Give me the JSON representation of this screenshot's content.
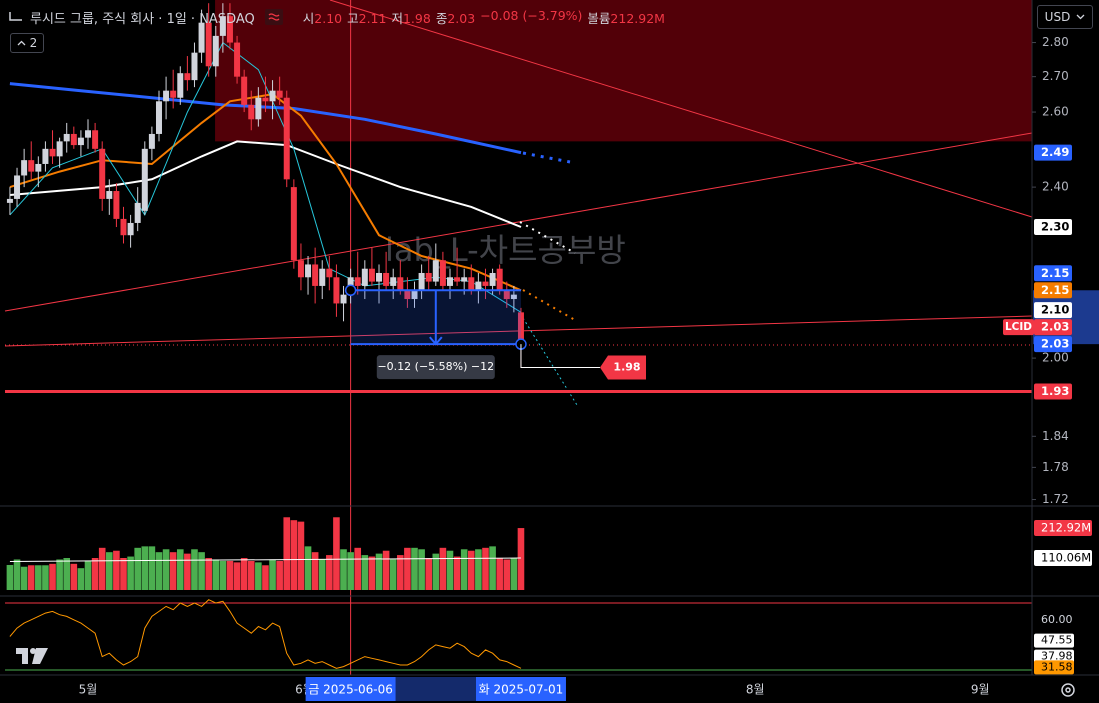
{
  "header": {
    "symbol": "루시드 그룹, 주식 회사 · 1일 · NASDAQ",
    "legend": [
      {
        "label": "시",
        "value": "2.10"
      },
      {
        "label": "고",
        "value": "2.11"
      },
      {
        "label": "저",
        "value": "1.98"
      },
      {
        "label": "종",
        "value": "2.03"
      },
      {
        "value": "−0.08 (−3.79%)"
      },
      {
        "label": "볼륨",
        "value": "212.92M"
      }
    ],
    "indicator_count": "2",
    "currency": "USD"
  },
  "chart_data": {
    "type": "candlestick",
    "scale": "log",
    "xlim": [
      -1.4,
      144
    ],
    "ylim": [
      1.71,
      2.93
    ],
    "xticks": [
      {
        "value": 11,
        "label": "5월"
      },
      {
        "value": 41.5,
        "label": "6월"
      },
      {
        "value": 105,
        "label": "8월"
      },
      {
        "value": 136.7,
        "label": "9월"
      }
    ],
    "yticks": [
      {
        "value": 2.8,
        "label": "2.80"
      },
      {
        "value": 2.7,
        "label": "2.70"
      },
      {
        "value": 2.6,
        "label": "2.60"
      },
      {
        "value": 2.4,
        "label": "2.40"
      },
      {
        "value": 2,
        "label": "2.00"
      },
      {
        "value": 1.84,
        "label": "1.84"
      },
      {
        "value": 1.78,
        "label": "1.78"
      },
      {
        "value": 1.72,
        "label": "1.72"
      }
    ],
    "up_color": "#d1d4dc",
    "down_color": "#f23645",
    "open": [
      2.36,
      2.37,
      2.43,
      2.47,
      2.44,
      2.46,
      2.5,
      2.48,
      2.52,
      2.54,
      2.51,
      2.53,
      2.55,
      2.5,
      2.37,
      2.39,
      2.32,
      2.28,
      2.31,
      2.34,
      2.5,
      2.54,
      2.63,
      2.66,
      2.64,
      2.71,
      2.69,
      2.77,
      2.86,
      2.73,
      2.82,
      2.88,
      2.8,
      2.7,
      2.62,
      2.58,
      2.64,
      2.63,
      2.66,
      2.64,
      2.4,
      2.22,
      2.18,
      2.21,
      2.16,
      2.2,
      2.18,
      2.12,
      2.14,
      2.18,
      2.16,
      2.2,
      2.17,
      2.19,
      2.16,
      2.18,
      2.15,
      2.13,
      2.15,
      2.19,
      2.17,
      2.22,
      2.16,
      2.18,
      2.17,
      2.18,
      2.15,
      2.17,
      2.16,
      2.2,
      2.15,
      2.13,
      2.1
    ],
    "high": [
      2.4,
      2.45,
      2.5,
      2.52,
      2.48,
      2.52,
      2.55,
      2.53,
      2.57,
      2.56,
      2.55,
      2.58,
      2.57,
      2.52,
      2.42,
      2.41,
      2.35,
      2.33,
      2.4,
      2.52,
      2.56,
      2.66,
      2.7,
      2.72,
      2.73,
      2.76,
      2.8,
      2.9,
      2.92,
      2.85,
      2.92,
      2.92,
      2.82,
      2.72,
      2.66,
      2.67,
      2.7,
      2.69,
      2.7,
      2.66,
      2.42,
      2.26,
      2.23,
      2.25,
      2.22,
      2.23,
      2.21,
      2.16,
      2.2,
      2.24,
      2.22,
      2.25,
      2.21,
      2.24,
      2.2,
      2.22,
      2.18,
      2.17,
      2.21,
      2.23,
      2.26,
      2.24,
      2.2,
      2.25,
      2.2,
      2.21,
      2.19,
      2.2,
      2.2,
      2.21,
      2.17,
      2.16,
      2.11
    ],
    "low": [
      2.33,
      2.35,
      2.4,
      2.42,
      2.4,
      2.44,
      2.46,
      2.45,
      2.49,
      2.5,
      2.48,
      2.5,
      2.49,
      2.34,
      2.33,
      2.3,
      2.26,
      2.25,
      2.29,
      2.33,
      2.47,
      2.52,
      2.58,
      2.61,
      2.62,
      2.66,
      2.67,
      2.74,
      2.7,
      2.7,
      2.77,
      2.78,
      2.68,
      2.6,
      2.55,
      2.56,
      2.6,
      2.58,
      2.62,
      2.4,
      2.2,
      2.15,
      2.14,
      2.12,
      2.13,
      2.15,
      2.09,
      2.08,
      2.12,
      2.14,
      2.13,
      2.16,
      2.12,
      2.15,
      2.13,
      2.14,
      2.11,
      2.11,
      2.13,
      2.15,
      2.16,
      2.15,
      2.13,
      2.16,
      2.14,
      2.14,
      2.12,
      2.13,
      2.14,
      2.14,
      2.11,
      2.1,
      1.98
    ],
    "close": [
      2.37,
      2.43,
      2.47,
      2.44,
      2.46,
      2.5,
      2.48,
      2.52,
      2.54,
      2.51,
      2.53,
      2.55,
      2.5,
      2.37,
      2.39,
      2.32,
      2.28,
      2.31,
      2.36,
      2.5,
      2.54,
      2.63,
      2.66,
      2.64,
      2.71,
      2.69,
      2.77,
      2.86,
      2.73,
      2.82,
      2.88,
      2.8,
      2.7,
      2.62,
      2.58,
      2.64,
      2.63,
      2.66,
      2.64,
      2.42,
      2.22,
      2.18,
      2.21,
      2.16,
      2.2,
      2.18,
      2.12,
      2.14,
      2.18,
      2.16,
      2.2,
      2.17,
      2.19,
      2.16,
      2.18,
      2.15,
      2.13,
      2.15,
      2.19,
      2.17,
      2.22,
      2.16,
      2.18,
      2.17,
      2.18,
      2.15,
      2.17,
      2.16,
      2.19,
      2.15,
      2.13,
      2.14,
      2.03
    ],
    "overlays": [
      {
        "color": "#2962ff",
        "x": [
          0,
          10,
          20,
          30,
          40,
          50,
          60,
          72
        ],
        "values": [
          2.68,
          2.66,
          2.64,
          2.62,
          2.61,
          2.58,
          2.54,
          2.49
        ]
      },
      {
        "color": "#ffffff",
        "x": [
          0,
          13,
          20,
          27,
          32,
          39,
          46,
          55,
          65,
          72
        ],
        "values": [
          2.38,
          2.4,
          2.42,
          2.48,
          2.52,
          2.51,
          2.46,
          2.4,
          2.35,
          2.3
        ]
      },
      {
        "color": "#f57c00",
        "x": [
          0,
          7,
          13,
          20,
          27,
          31,
          37,
          41,
          46,
          52,
          58,
          65,
          72
        ],
        "values": [
          2.4,
          2.44,
          2.47,
          2.46,
          2.57,
          2.63,
          2.65,
          2.59,
          2.46,
          2.28,
          2.23,
          2.2,
          2.15
        ]
      },
      {
        "color": "#26c6da",
        "x": [
          0,
          6,
          13,
          19,
          25,
          30,
          35,
          40,
          45,
          50,
          55,
          60,
          65,
          72
        ],
        "values": [
          2.33,
          2.45,
          2.5,
          2.33,
          2.6,
          2.8,
          2.72,
          2.5,
          2.2,
          2.16,
          2.17,
          2.18,
          2.17,
          2.1
        ]
      }
    ],
    "zone": {
      "low": 2.52,
      "start": 28.9,
      "color": "#520008"
    },
    "measure": {
      "start": 48,
      "end": 72,
      "from": 2.15,
      "to": 2.03,
      "label": "−0.12 (−5.58%) −12"
    },
    "low_tag": {
      "value": 1.98,
      "label": "1.98"
    },
    "price_tags": [
      {
        "value": 2.49,
        "label": "2.49",
        "bg": "#2962ff",
        "fg": "#ffffff"
      },
      {
        "value": 2.3,
        "label": "2.30",
        "bg": "#ffffff",
        "fg": "#000000"
      },
      {
        "value": 2.15,
        "label": "2.15",
        "bg": "#f57c00",
        "fg": "#ffffff"
      },
      {
        "value": 2.15,
        "label": "2.15",
        "bg": "#2962ff",
        "fg": "#ffffff"
      },
      {
        "value": 2.1,
        "label": "2.10",
        "bg": "#ffffff",
        "fg": "#000000"
      },
      {
        "value": 2.03,
        "label": "2.03",
        "bg": "#2962ff",
        "fg": "#ffffff"
      },
      {
        "value": 2.03,
        "label": "2.03",
        "bg": "#f23645",
        "fg": "#ffffff",
        "symbol": "LCID"
      },
      {
        "value": 1.93,
        "label": "1.93",
        "bg": "#f23645",
        "fg": "#ffffff",
        "line": true
      }
    ],
    "watermark": "lab_L-차트공부방",
    "crosshair": {
      "x": 48,
      "label": "금 2025-06-06"
    },
    "date_tag": {
      "x": 72,
      "label": "화 2025-07-01"
    },
    "volume": {
      "ylim": [
        0,
        275
      ],
      "up_color": "#4caf50",
      "down_color": "#f23645",
      "values": [
        86,
        105,
        80,
        85,
        85,
        85,
        90,
        105,
        110,
        90,
        75,
        100,
        110,
        145,
        130,
        135,
        110,
        115,
        145,
        150,
        150,
        130,
        140,
        130,
        140,
        125,
        140,
        130,
        110,
        105,
        100,
        100,
        95,
        110,
        100,
        95,
        85,
        105,
        100,
        250,
        240,
        235,
        150,
        130,
        105,
        120,
        250,
        140,
        130,
        145,
        120,
        115,
        125,
        135,
        105,
        120,
        145,
        145,
        140,
        110,
        125,
        145,
        135,
        115,
        140,
        135,
        140,
        145,
        150,
        110,
        105,
        110,
        212.92
      ],
      "ma": {
        "color": "#ffffff",
        "x": [
          0,
          72
        ],
        "values": [
          98,
          110.06
        ]
      },
      "tags": [
        {
          "value": 212.92,
          "label": "212.92M",
          "bg": "#f23645",
          "fg": "#ffffff"
        },
        {
          "value": 110.06,
          "label": "110.06M",
          "bg": "#ffffff",
          "fg": "#000000"
        }
      ]
    },
    "oscillator": {
      "ylim": [
        28.8,
        73
      ],
      "color": "#ff9800",
      "values": [
        50,
        55,
        58,
        60,
        62,
        64,
        65,
        63,
        62,
        60,
        58,
        55,
        52,
        38,
        40,
        36,
        33,
        35,
        38,
        55,
        62,
        65,
        68,
        66,
        70,
        68,
        70,
        68,
        72,
        70,
        71,
        65,
        58,
        55,
        52,
        56,
        54,
        58,
        56,
        40,
        33,
        34,
        36,
        34,
        35,
        33,
        31,
        32,
        34,
        36,
        38,
        37,
        36,
        35,
        34,
        33,
        33,
        35,
        38,
        42,
        45,
        44,
        43,
        46,
        44,
        40,
        38,
        42,
        40,
        36,
        35,
        33,
        31
      ],
      "levels": [
        {
          "value": 70,
          "color": "#f23645"
        },
        {
          "value": 30,
          "color": "#4caf50"
        }
      ],
      "tags": [
        {
          "value": 60,
          "label": "60.00",
          "bg": "#000000",
          "fg": "#d1d4dc"
        },
        {
          "value": 47.55,
          "label": "47.55",
          "bg": "#ffffff",
          "fg": "#000000"
        },
        {
          "value": 37.98,
          "label": "37.98",
          "bg": "#ffffff",
          "fg": "#000000"
        },
        {
          "value": 31.58,
          "label": "31.58",
          "bg": "#ff9800",
          "fg": "#000000"
        }
      ]
    }
  }
}
